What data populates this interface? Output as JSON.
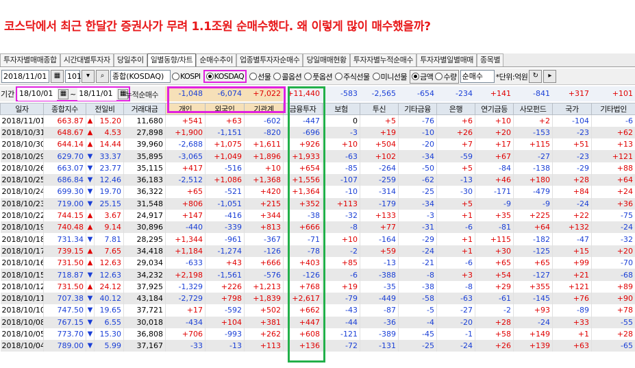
{
  "headline": "코스닥에서 최근 한달간 증권사가 무려 1.1조원 순매수했다. 왜 이렇게 많이 매수했을까?",
  "tabs": [
    "투자자별매매종합",
    "시간대별투자자",
    "당일추이",
    "일별동향/차트",
    "순매수추이",
    "업종별투자자순매수",
    "당일매매현황",
    "투자자별누적순매수",
    "투자자별일별매매",
    "종목별"
  ],
  "active_tab": "일별동향/차트",
  "toolbar": {
    "date": "2018/11/01",
    "code": "101",
    "index_name": "종합(KOSDAQ)",
    "radios": [
      {
        "label": "KOSPI",
        "on": false
      },
      {
        "label": "KOSDAQ",
        "on": true
      },
      {
        "label": "선물",
        "on": false
      },
      {
        "label": "콜옵션",
        "on": false
      },
      {
        "label": "풋옵션",
        "on": false
      },
      {
        "label": "주식선물",
        "on": false
      },
      {
        "label": "미니선물",
        "on": false
      }
    ],
    "amt_label": "금액",
    "qty_label": "수량",
    "mode": "순매수",
    "unit": "단위:억원"
  },
  "period": {
    "label": "기간",
    "from": "18/10/01",
    "sep": "~",
    "to": "18/11/01",
    "net_label": "누적순매수"
  },
  "totals": [
    "-1,048",
    "-6,074",
    "+7,022",
    "+11,440",
    "-583",
    "-2,565",
    "-654",
    "-234",
    "+141",
    "-841",
    "+317",
    "+101"
  ],
  "columns": [
    "일자",
    "종합지수",
    "전일비",
    "",
    "거래대금",
    "개인",
    "외국인",
    "기관계",
    "금융투자",
    "보험",
    "투신",
    "기타금융",
    "은행",
    "연기금등",
    "사모펀드",
    "국가",
    "기타법인"
  ],
  "rows": [
    [
      "2018/11/01",
      "663.87",
      "up",
      "15.20",
      "11,680",
      "+541",
      "+63",
      "-602",
      "-447",
      "0",
      "+5",
      "-76",
      "+6",
      "+10",
      "+2",
      "-104",
      "-6"
    ],
    [
      "2018/10/31",
      "648.67",
      "up",
      "4.53",
      "27,898",
      "+1,900",
      "-1,151",
      "-820",
      "-696",
      "-3",
      "+19",
      "-10",
      "+26",
      "+20",
      "-153",
      "-23",
      "+62"
    ],
    [
      "2018/10/30",
      "644.14",
      "up",
      "14.44",
      "39,960",
      "-2,688",
      "+1,075",
      "+1,611",
      "+926",
      "+10",
      "+504",
      "-20",
      "+7",
      "+17",
      "+115",
      "+51",
      "+13"
    ],
    [
      "2018/10/29",
      "629.70",
      "dn",
      "33.37",
      "35,895",
      "-3,065",
      "+1,049",
      "+1,896",
      "+1,933",
      "-63",
      "+102",
      "-34",
      "-59",
      "+67",
      "-27",
      "-23",
      "+121"
    ],
    [
      "2018/10/26",
      "663.07",
      "dn",
      "23.77",
      "35,115",
      "+417",
      "-516",
      "+10",
      "+654",
      "-85",
      "-264",
      "-50",
      "+5",
      "-84",
      "-138",
      "-29",
      "+88"
    ],
    [
      "2018/10/25",
      "686.84",
      "dn",
      "12.46",
      "36,183",
      "-2,512",
      "+1,086",
      "+1,368",
      "+1,556",
      "-107",
      "-259",
      "-62",
      "-13",
      "+46",
      "+180",
      "+28",
      "+64"
    ],
    [
      "2018/10/24",
      "699.30",
      "dn",
      "19.70",
      "36,322",
      "+65",
      "-521",
      "+420",
      "+1,364",
      "-10",
      "-314",
      "-25",
      "-30",
      "-171",
      "-479",
      "+84",
      "+24"
    ],
    [
      "2018/10/23",
      "719.00",
      "dn",
      "25.15",
      "31,548",
      "+806",
      "-1,051",
      "+215",
      "+352",
      "+113",
      "-179",
      "-34",
      "+5",
      "-9",
      "-9",
      "-24",
      "+36"
    ],
    [
      "2018/10/22",
      "744.15",
      "up",
      "3.67",
      "24,917",
      "+147",
      "-416",
      "+344",
      "-38",
      "-32",
      "+133",
      "-3",
      "+1",
      "+35",
      "+225",
      "+22",
      "-75"
    ],
    [
      "2018/10/19",
      "740.48",
      "up",
      "9.14",
      "30,896",
      "-440",
      "-339",
      "+813",
      "+666",
      "-8",
      "+77",
      "-31",
      "-6",
      "-81",
      "+64",
      "+132",
      "-24"
    ],
    [
      "2018/10/18",
      "731.34",
      "dn",
      "7.81",
      "28,295",
      "+1,344",
      "-961",
      "-367",
      "-71",
      "+10",
      "-164",
      "-29",
      "+1",
      "+115",
      "-182",
      "-47",
      "-32"
    ],
    [
      "2018/10/17",
      "739.15",
      "up",
      "7.65",
      "34,418",
      "+1,184",
      "-1,274",
      "-126",
      "-78",
      "-2",
      "+59",
      "-24",
      "+1",
      "+30",
      "-125",
      "+15",
      "+20"
    ],
    [
      "2018/10/16",
      "731.50",
      "up",
      "12.63",
      "29,034",
      "-633",
      "+43",
      "+666",
      "+403",
      "+85",
      "-13",
      "-21",
      "-6",
      "+65",
      "+65",
      "+99",
      "-70"
    ],
    [
      "2018/10/15",
      "718.87",
      "dn",
      "12.63",
      "34,232",
      "+2,198",
      "-1,561",
      "-576",
      "-126",
      "-6",
      "-388",
      "-8",
      "+3",
      "+54",
      "-127",
      "+21",
      "-68"
    ],
    [
      "2018/10/12",
      "731.50",
      "up",
      "24.12",
      "37,925",
      "-1,329",
      "+226",
      "+1,213",
      "+768",
      "+19",
      "-35",
      "-38",
      "-8",
      "+29",
      "+355",
      "+121",
      "+89"
    ],
    [
      "2018/10/11",
      "707.38",
      "dn",
      "40.12",
      "43,184",
      "-2,729",
      "+798",
      "+1,839",
      "+2,617",
      "-79",
      "-449",
      "-58",
      "-63",
      "-61",
      "-145",
      "+76",
      "+90"
    ],
    [
      "2018/10/10",
      "747.50",
      "dn",
      "19.65",
      "37,721",
      "+17",
      "-592",
      "+502",
      "+662",
      "-43",
      "-87",
      "-5",
      "-27",
      "-2",
      "+93",
      "-89",
      "+78"
    ],
    [
      "2018/10/08",
      "767.15",
      "dn",
      "6.55",
      "30,018",
      "-434",
      "+104",
      "+381",
      "+447",
      "-44",
      "-36",
      "-4",
      "-20",
      "+28",
      "-24",
      "+33",
      "-55"
    ],
    [
      "2018/10/05",
      "773.70",
      "dn",
      "15.30",
      "36,808",
      "+706",
      "-993",
      "+262",
      "+608",
      "-121",
      "-389",
      "-45",
      "-1",
      "+58",
      "+149",
      "+1",
      "+28"
    ],
    [
      "2018/10/04",
      "789.00",
      "dn",
      "5.99",
      "37,167",
      "-33",
      "-13",
      "+113",
      "+136",
      "-72",
      "-131",
      "-25",
      "-24",
      "+26",
      "+139",
      "+63",
      "-65"
    ]
  ]
}
